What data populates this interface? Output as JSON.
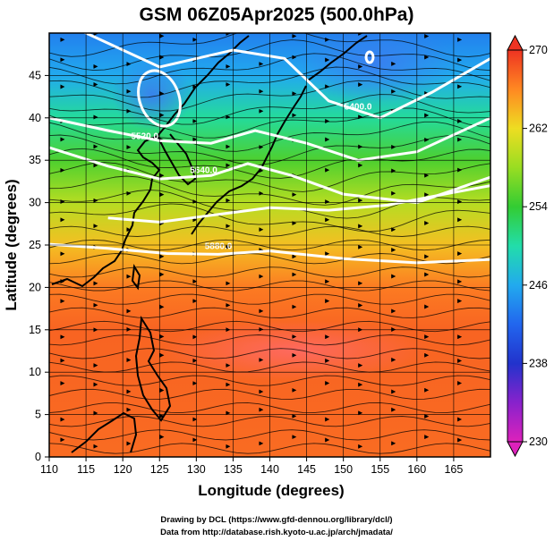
{
  "title": "GSM 06Z05Apr2025 (500.0hPa)",
  "xlabel": "Longitude (degrees)",
  "ylabel": "Latitude  (degrees)",
  "credit_line1": "Drawing by DCL (https://www.gfd-dennou.org/library/dcl/)",
  "credit_line2": "Data from http://database.rish.kyoto-u.ac.jp/arch/jmadata/",
  "chart_data": {
    "type": "heatmap",
    "title": "GSM 06Z05Apr2025 (500.0hPa)",
    "field": "temperature (K) shaded, geopotential height contours, streamlines",
    "xlabel": "Longitude (degrees)",
    "ylabel": "Latitude  (degrees)",
    "xlim": [
      110,
      170
    ],
    "ylim": [
      0,
      50
    ],
    "x_ticks": [
      110,
      115,
      120,
      125,
      130,
      135,
      140,
      145,
      150,
      155,
      160,
      165
    ],
    "y_ticks": [
      0,
      5,
      10,
      15,
      20,
      25,
      30,
      35,
      40,
      45
    ],
    "grid": true,
    "colorbar": {
      "range": [
        230,
        270
      ],
      "ticks": [
        230,
        238,
        246,
        254,
        262,
        270
      ],
      "palette": [
        {
          "value": 230,
          "color": "#dd22bb"
        },
        {
          "value": 234,
          "color": "#8822cc"
        },
        {
          "value": 238,
          "color": "#2233cc"
        },
        {
          "value": 242,
          "color": "#2266ee"
        },
        {
          "value": 246,
          "color": "#22aaee"
        },
        {
          "value": 250,
          "color": "#22ddaa"
        },
        {
          "value": 254,
          "color": "#33cc33"
        },
        {
          "value": 258,
          "color": "#99dd22"
        },
        {
          "value": 262,
          "color": "#eedd22"
        },
        {
          "value": 266,
          "color": "#ff8822"
        },
        {
          "value": 270,
          "color": "#ee3322"
        }
      ]
    },
    "temperature_bands": [
      {
        "lat": 0,
        "value": 267.3
      },
      {
        "lat": 5,
        "value": 267.5
      },
      {
        "lat": 10,
        "value": 267.6
      },
      {
        "lat": 15,
        "value": 267.7
      },
      {
        "lat": 20,
        "value": 266.6
      },
      {
        "lat": 25,
        "value": 263.4
      },
      {
        "lat": 30,
        "value": 259.3
      },
      {
        "lat": 35,
        "value": 255.0
      },
      {
        "lat": 40,
        "value": 250.5
      },
      {
        "lat": 45,
        "value": 246.0
      },
      {
        "lat": 50,
        "value": 243.5
      }
    ],
    "height_contours": [
      {
        "label": "5400.0",
        "label_lon": 152,
        "label_lat": 41,
        "points": [
          [
            110,
            52
          ],
          [
            125,
            46
          ],
          [
            135,
            48
          ],
          [
            142,
            47
          ],
          [
            148,
            42
          ],
          [
            155,
            40
          ],
          [
            162,
            43
          ],
          [
            170,
            47
          ]
        ]
      },
      {
        "label": "5520.0",
        "label_lon": 123,
        "label_lat": 37.5,
        "points": [
          [
            110,
            40
          ],
          [
            118,
            38.5
          ],
          [
            125,
            37.3
          ],
          [
            132,
            37
          ],
          [
            138,
            38.5
          ],
          [
            145,
            37
          ],
          [
            152,
            35
          ],
          [
            160,
            36
          ],
          [
            170,
            40
          ]
        ]
      },
      {
        "label": "5640.0",
        "label_lon": 131,
        "label_lat": 33.5,
        "points": [
          [
            110,
            36.5
          ],
          [
            118,
            34.3
          ],
          [
            125,
            32.8
          ],
          [
            132,
            33.2
          ],
          [
            137,
            34.6
          ],
          [
            143,
            33.2
          ],
          [
            150,
            31
          ],
          [
            160,
            30
          ],
          [
            170,
            33
          ]
        ]
      },
      {
        "label": "",
        "label_lon": 0,
        "label_lat": 0,
        "points": [
          [
            118,
            28.2
          ],
          [
            125,
            27.7
          ],
          [
            132,
            28.5
          ],
          [
            140,
            29.4
          ],
          [
            148,
            29.1
          ],
          [
            156,
            29.7
          ],
          [
            165,
            31.2
          ],
          [
            170,
            32
          ]
        ]
      },
      {
        "label": "5880.0",
        "label_lon": 133,
        "label_lat": 24.5,
        "points": [
          [
            110,
            25.1
          ],
          [
            118,
            24.6
          ],
          [
            126,
            24
          ],
          [
            133,
            23.9
          ],
          [
            140,
            24.3
          ],
          [
            150,
            23.4
          ],
          [
            160,
            22.9
          ],
          [
            170,
            23.3
          ]
        ]
      }
    ],
    "low_centers": [
      {
        "lon": 124,
        "lat": 45,
        "type": "closed-low"
      },
      {
        "lon": 153,
        "lat": 48.5,
        "type": "closed-low"
      }
    ],
    "annotations": [
      "5400.0",
      "5520.0",
      "5640.0",
      "5880.0"
    ]
  }
}
